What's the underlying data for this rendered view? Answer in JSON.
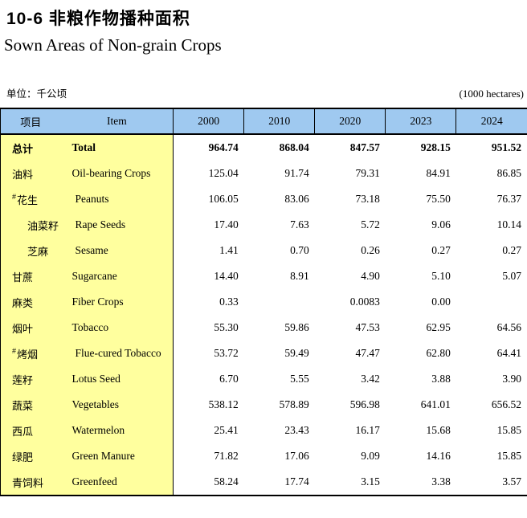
{
  "page": {
    "title_zh": "10-6 非粮作物播种面积",
    "title_en": "Sown Areas of Non-grain Crops",
    "unit_zh": "单位：千公顷",
    "unit_en": "(1000 hectares)"
  },
  "colors": {
    "header_bg": "#9FC9F0",
    "item_bg": "#FFFF9E",
    "border": "#000000"
  },
  "table": {
    "header": {
      "item_zh": "项目",
      "item_en": "Item",
      "years": [
        "2000",
        "2010",
        "2020",
        "2023",
        "2024"
      ]
    },
    "rows": [
      {
        "zh": "总计",
        "en": "Total",
        "bold": true,
        "indent": 0,
        "prefix": "",
        "values": [
          "964.74",
          "868.04",
          "847.57",
          "928.15",
          "951.52"
        ]
      },
      {
        "zh": "油料",
        "en": "Oil-bearing Crops",
        "bold": false,
        "indent": 0,
        "prefix": "",
        "values": [
          "125.04",
          "91.74",
          "79.31",
          "84.91",
          "86.85"
        ]
      },
      {
        "zh": "花生",
        "en": "Peanuts",
        "bold": false,
        "indent": 1,
        "prefix": "#",
        "values": [
          "106.05",
          "83.06",
          "73.18",
          "75.50",
          "76.37"
        ]
      },
      {
        "zh": "油菜籽",
        "en": "Rape Seeds",
        "bold": false,
        "indent": 2,
        "prefix": "",
        "values": [
          "17.40",
          "7.63",
          "5.72",
          "9.06",
          "10.14"
        ]
      },
      {
        "zh": "芝麻",
        "en": "Sesame",
        "bold": false,
        "indent": 2,
        "prefix": "",
        "values": [
          "1.41",
          "0.70",
          "0.26",
          "0.27",
          "0.27"
        ]
      },
      {
        "zh": "甘蔗",
        "en": "Sugarcane",
        "bold": false,
        "indent": 0,
        "prefix": "",
        "values": [
          "14.40",
          "8.91",
          "4.90",
          "5.10",
          "5.07"
        ]
      },
      {
        "zh": "麻类",
        "en": "Fiber Crops",
        "bold": false,
        "indent": 0,
        "prefix": "",
        "values": [
          "0.33",
          "",
          "0.0083",
          "0.00",
          ""
        ]
      },
      {
        "zh": "烟叶",
        "en": "Tobacco",
        "bold": false,
        "indent": 0,
        "prefix": "",
        "values": [
          "55.30",
          "59.86",
          "47.53",
          "62.95",
          "64.56"
        ]
      },
      {
        "zh": "烤烟",
        "en": "Flue-cured Tobacco",
        "bold": false,
        "indent": 1,
        "prefix": "#",
        "values": [
          "53.72",
          "59.49",
          "47.47",
          "62.80",
          "64.41"
        ]
      },
      {
        "zh": "莲籽",
        "en": "Lotus Seed",
        "bold": false,
        "indent": 0,
        "prefix": "",
        "values": [
          "6.70",
          "5.55",
          "3.42",
          "3.88",
          "3.90"
        ]
      },
      {
        "zh": "蔬菜",
        "en": "Vegetables",
        "bold": false,
        "indent": 0,
        "prefix": "",
        "values": [
          "538.12",
          "578.89",
          "596.98",
          "641.01",
          "656.52"
        ]
      },
      {
        "zh": "西瓜",
        "en": "Watermelon",
        "bold": false,
        "indent": 0,
        "prefix": "",
        "values": [
          "25.41",
          "23.43",
          "16.17",
          "15.68",
          "15.85"
        ]
      },
      {
        "zh": "绿肥",
        "en": "Green Manure",
        "bold": false,
        "indent": 0,
        "prefix": "",
        "values": [
          "71.82",
          "17.06",
          "9.09",
          "14.16",
          "15.85"
        ]
      },
      {
        "zh": "青饲料",
        "en": "Greenfeed",
        "bold": false,
        "indent": 0,
        "prefix": "",
        "values": [
          "58.24",
          "17.74",
          "3.15",
          "3.38",
          "3.57"
        ]
      }
    ]
  }
}
